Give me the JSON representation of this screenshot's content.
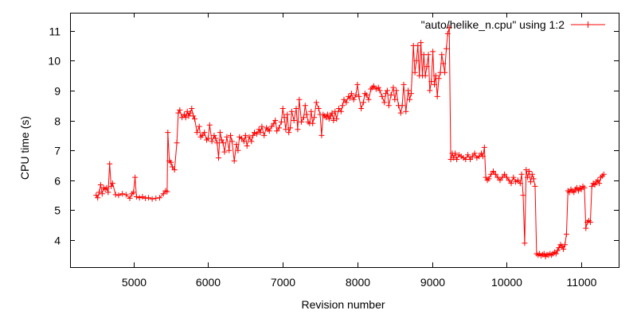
{
  "chart_data": {
    "type": "line",
    "title": "",
    "xlabel": "Revision number",
    "ylabel": "CPU time (s)",
    "xlim": [
      4150,
      11500
    ],
    "ylim": [
      3.1,
      11.6
    ],
    "x_ticks": [
      5000,
      6000,
      7000,
      8000,
      9000,
      10000,
      11000
    ],
    "y_ticks": [
      4,
      5,
      6,
      7,
      8,
      9,
      10,
      11
    ],
    "grid": false,
    "legend_position": "top-right",
    "series": [
      {
        "name": "\"auto/helike_n.cpu\" using 1:2",
        "color": "#ff0000",
        "marker": "plus",
        "points": [
          [
            4500,
            5.5
          ],
          [
            4520,
            5.42
          ],
          [
            4540,
            5.6
          ],
          [
            4560,
            5.85
          ],
          [
            4580,
            5.55
          ],
          [
            4600,
            5.75
          ],
          [
            4620,
            5.7
          ],
          [
            4640,
            5.75
          ],
          [
            4660,
            5.6
          ],
          [
            4680,
            6.55
          ],
          [
            4700,
            5.8
          ],
          [
            4720,
            5.9
          ],
          [
            4760,
            5.52
          ],
          [
            4800,
            5.5
          ],
          [
            4850,
            5.55
          ],
          [
            4900,
            5.52
          ],
          [
            4950,
            5.4
          ],
          [
            4980,
            5.55
          ],
          [
            5000,
            5.6
          ],
          [
            5020,
            6.1
          ],
          [
            5040,
            5.45
          ],
          [
            5080,
            5.42
          ],
          [
            5120,
            5.45
          ],
          [
            5160,
            5.4
          ],
          [
            5200,
            5.42
          ],
          [
            5250,
            5.38
          ],
          [
            5300,
            5.4
          ],
          [
            5350,
            5.42
          ],
          [
            5400,
            5.55
          ],
          [
            5430,
            5.65
          ],
          [
            5450,
            5.62
          ],
          [
            5460,
            7.6
          ],
          [
            5480,
            6.65
          ],
          [
            5500,
            6.6
          ],
          [
            5520,
            6.45
          ],
          [
            5550,
            6.35
          ],
          [
            5580,
            7.25
          ],
          [
            5600,
            8.25
          ],
          [
            5620,
            8.35
          ],
          [
            5650,
            8.1
          ],
          [
            5680,
            8.2
          ],
          [
            5700,
            8.1
          ],
          [
            5720,
            8.3
          ],
          [
            5740,
            8.15
          ],
          [
            5760,
            8.25
          ],
          [
            5780,
            8.4
          ],
          [
            5800,
            8.15
          ],
          [
            5820,
            8.05
          ],
          [
            5850,
            7.6
          ],
          [
            5880,
            7.8
          ],
          [
            5900,
            7.45
          ],
          [
            5920,
            7.5
          ],
          [
            5950,
            7.6
          ],
          [
            5980,
            7.35
          ],
          [
            6000,
            7.4
          ],
          [
            6020,
            7.85
          ],
          [
            6050,
            7.3
          ],
          [
            6080,
            7.5
          ],
          [
            6100,
            7.4
          ],
          [
            6120,
            7.25
          ],
          [
            6140,
            6.75
          ],
          [
            6160,
            7.6
          ],
          [
            6180,
            7.35
          ],
          [
            6200,
            7.25
          ],
          [
            6220,
            6.95
          ],
          [
            6250,
            7.45
          ],
          [
            6280,
            7.0
          ],
          [
            6300,
            7.5
          ],
          [
            6320,
            7.3
          ],
          [
            6350,
            6.65
          ],
          [
            6380,
            7.2
          ],
          [
            6400,
            7.0
          ],
          [
            6420,
            7.45
          ],
          [
            6450,
            7.4
          ],
          [
            6480,
            7.3
          ],
          [
            6500,
            7.5
          ],
          [
            6520,
            7.15
          ],
          [
            6550,
            7.45
          ],
          [
            6580,
            7.3
          ],
          [
            6600,
            7.5
          ],
          [
            6620,
            7.6
          ],
          [
            6650,
            7.55
          ],
          [
            6680,
            7.7
          ],
          [
            6700,
            7.6
          ],
          [
            6720,
            7.8
          ],
          [
            6750,
            7.5
          ],
          [
            6780,
            7.75
          ],
          [
            6800,
            7.7
          ],
          [
            6820,
            7.65
          ],
          [
            6850,
            7.8
          ],
          [
            6880,
            7.9
          ],
          [
            6900,
            8.0
          ],
          [
            6920,
            7.65
          ],
          [
            6950,
            7.75
          ],
          [
            6980,
            7.95
          ],
          [
            7000,
            8.4
          ],
          [
            7020,
            8.1
          ],
          [
            7040,
            7.7
          ],
          [
            7060,
            8.2
          ],
          [
            7080,
            7.6
          ],
          [
            7100,
            7.75
          ],
          [
            7120,
            8.3
          ],
          [
            7150,
            8.0
          ],
          [
            7180,
            8.4
          ],
          [
            7200,
            7.7
          ],
          [
            7220,
            8.7
          ],
          [
            7250,
            7.95
          ],
          [
            7280,
            8.1
          ],
          [
            7300,
            8.5
          ],
          [
            7320,
            8.2
          ],
          [
            7340,
            7.95
          ],
          [
            7360,
            7.9
          ],
          [
            7380,
            8.3
          ],
          [
            7400,
            7.9
          ],
          [
            7420,
            8.1
          ],
          [
            7450,
            8.6
          ],
          [
            7480,
            8.4
          ],
          [
            7500,
            8.2
          ],
          [
            7520,
            7.5
          ],
          [
            7540,
            8.2
          ],
          [
            7560,
            8.15
          ],
          [
            7580,
            8.1
          ],
          [
            7600,
            8.2
          ],
          [
            7620,
            8.05
          ],
          [
            7640,
            8.15
          ],
          [
            7660,
            8.25
          ],
          [
            7680,
            8.0
          ],
          [
            7700,
            8.3
          ],
          [
            7720,
            8.05
          ],
          [
            7750,
            8.4
          ],
          [
            7780,
            8.3
          ],
          [
            7800,
            8.5
          ],
          [
            7820,
            8.7
          ],
          [
            7850,
            8.6
          ],
          [
            7880,
            8.8
          ],
          [
            7900,
            8.75
          ],
          [
            7920,
            8.9
          ],
          [
            7950,
            8.7
          ],
          [
            7980,
            8.85
          ],
          [
            8000,
            9.2
          ],
          [
            8020,
            8.8
          ],
          [
            8050,
            8.4
          ],
          [
            8080,
            8.6
          ],
          [
            8100,
            8.9
          ],
          [
            8120,
            8.85
          ],
          [
            8150,
            8.7
          ],
          [
            8180,
            9.05
          ],
          [
            8200,
            9.1
          ],
          [
            8220,
            9.15
          ],
          [
            8250,
            9.05
          ],
          [
            8280,
            9.1
          ],
          [
            8300,
            9.0
          ],
          [
            8330,
            8.8
          ],
          [
            8360,
            8.6
          ],
          [
            8380,
            8.9
          ],
          [
            8400,
            9.0
          ],
          [
            8420,
            8.5
          ],
          [
            8450,
            8.85
          ],
          [
            8480,
            9.1
          ],
          [
            8500,
            8.7
          ],
          [
            8520,
            9.0
          ],
          [
            8550,
            8.5
          ],
          [
            8580,
            8.25
          ],
          [
            8600,
            8.5
          ],
          [
            8620,
            9.2
          ],
          [
            8650,
            8.3
          ],
          [
            8680,
            9.0
          ],
          [
            8700,
            8.7
          ],
          [
            8720,
            8.9
          ],
          [
            8750,
            10.5
          ],
          [
            8770,
            9.6
          ],
          [
            8790,
            10.0
          ],
          [
            8810,
            10.5
          ],
          [
            8830,
            9.5
          ],
          [
            8850,
            10.6
          ],
          [
            8870,
            9.5
          ],
          [
            8890,
            10.2
          ],
          [
            8910,
            9.5
          ],
          [
            8930,
            9.8
          ],
          [
            8950,
            10.2
          ],
          [
            8970,
            9.0
          ],
          [
            8990,
            9.3
          ],
          [
            9010,
            10.3
          ],
          [
            9030,
            9.2
          ],
          [
            9050,
            9.5
          ],
          [
            9070,
            8.8
          ],
          [
            9090,
            9.4
          ],
          [
            9110,
            9.6
          ],
          [
            9130,
            10.2
          ],
          [
            9150,
            9.9
          ],
          [
            9170,
            9.6
          ],
          [
            9190,
            10.4
          ],
          [
            9210,
            10.9
          ],
          [
            9230,
            11.1
          ],
          [
            9250,
            6.7
          ],
          [
            9270,
            6.9
          ],
          [
            9290,
            6.75
          ],
          [
            9310,
            6.9
          ],
          [
            9330,
            6.7
          ],
          [
            9360,
            6.85
          ],
          [
            9390,
            6.8
          ],
          [
            9420,
            6.75
          ],
          [
            9450,
            6.7
          ],
          [
            9480,
            6.85
          ],
          [
            9510,
            6.7
          ],
          [
            9540,
            6.8
          ],
          [
            9570,
            6.9
          ],
          [
            9600,
            6.75
          ],
          [
            9630,
            6.8
          ],
          [
            9660,
            6.9
          ],
          [
            9680,
            6.8
          ],
          [
            9700,
            7.1
          ],
          [
            9720,
            6.1
          ],
          [
            9740,
            6.0
          ],
          [
            9760,
            6.05
          ],
          [
            9790,
            6.2
          ],
          [
            9820,
            6.3
          ],
          [
            9850,
            6.2
          ],
          [
            9880,
            6.1
          ],
          [
            9910,
            6.0
          ],
          [
            9940,
            6.1
          ],
          [
            9970,
            6.2
          ],
          [
            10000,
            6.1
          ],
          [
            10030,
            6.0
          ],
          [
            10060,
            5.9
          ],
          [
            10090,
            6.1
          ],
          [
            10120,
            5.95
          ],
          [
            10150,
            6.0
          ],
          [
            10180,
            5.9
          ],
          [
            10200,
            6.2
          ],
          [
            10220,
            5.5
          ],
          [
            10240,
            3.9
          ],
          [
            10260,
            6.35
          ],
          [
            10280,
            6.1
          ],
          [
            10300,
            6.3
          ],
          [
            10320,
            5.95
          ],
          [
            10340,
            6.2
          ],
          [
            10360,
            6.05
          ],
          [
            10380,
            5.8
          ],
          [
            10400,
            3.55
          ],
          [
            10420,
            3.5
          ],
          [
            10440,
            3.55
          ],
          [
            10460,
            3.48
          ],
          [
            10480,
            3.52
          ],
          [
            10500,
            3.55
          ],
          [
            10520,
            3.45
          ],
          [
            10540,
            3.52
          ],
          [
            10560,
            3.5
          ],
          [
            10580,
            3.55
          ],
          [
            10600,
            3.5
          ],
          [
            10620,
            3.55
          ],
          [
            10640,
            3.6
          ],
          [
            10660,
            3.55
          ],
          [
            10680,
            3.65
          ],
          [
            10700,
            3.75
          ],
          [
            10720,
            3.85
          ],
          [
            10740,
            3.8
          ],
          [
            10760,
            3.7
          ],
          [
            10780,
            3.85
          ],
          [
            10800,
            4.2
          ],
          [
            10820,
            5.65
          ],
          [
            10840,
            5.6
          ],
          [
            10860,
            5.7
          ],
          [
            10880,
            5.65
          ],
          [
            10900,
            5.6
          ],
          [
            10920,
            5.7
          ],
          [
            10940,
            5.75
          ],
          [
            10960,
            5.65
          ],
          [
            10980,
            5.75
          ],
          [
            11000,
            5.7
          ],
          [
            11020,
            5.8
          ],
          [
            11040,
            5.75
          ],
          [
            11060,
            4.4
          ],
          [
            11080,
            4.6
          ],
          [
            11100,
            4.65
          ],
          [
            11120,
            4.6
          ],
          [
            11140,
            5.8
          ],
          [
            11160,
            5.9
          ],
          [
            11180,
            5.85
          ],
          [
            11200,
            5.95
          ],
          [
            11220,
            6.0
          ],
          [
            11240,
            5.9
          ],
          [
            11260,
            6.1
          ],
          [
            11280,
            6.15
          ],
          [
            11300,
            6.2
          ]
        ]
      }
    ]
  }
}
